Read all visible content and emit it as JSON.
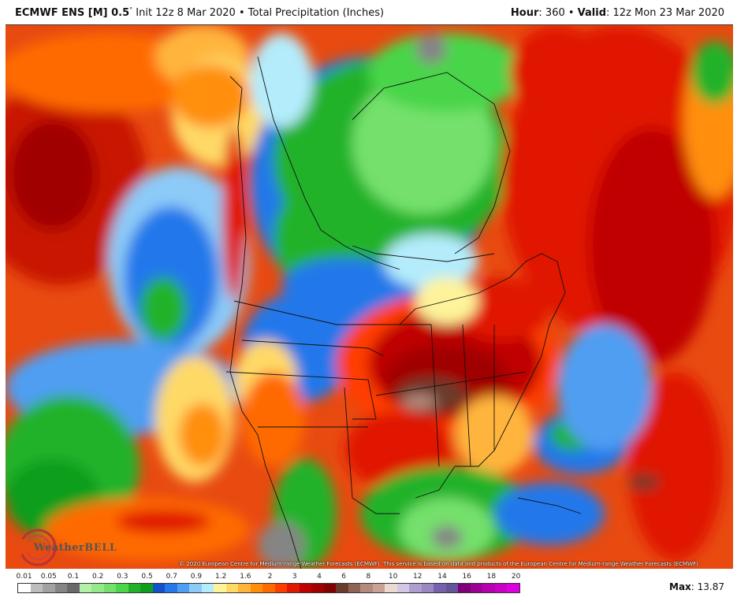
{
  "header": {
    "model": "ECMWF ENS [M] 0.5",
    "degree": "°",
    "init": " Init 12z 8 Mar 2020",
    "sep": " • ",
    "product": "Total Precipitation (Inches)",
    "hour_label": "Hour",
    "hour_value": ": 360",
    "valid_label": "Valid",
    "valid_value": ": 12z Mon 23 Mar 2020"
  },
  "map": {
    "region": "North America",
    "copyright": "© 2020 European Centre for Medium-range Weather Forecasts (ECMWF). This service is based on data and products of the European Centre for Medium-range Weather Forecasts (ECMWF).",
    "logo_text": "WeatherBELL",
    "max_label": "Max",
    "max_value": ": 13.87"
  },
  "legend": {
    "labels": [
      "0.01",
      "0.05",
      "0.1",
      "0.2",
      "0.3",
      "0.5",
      "0.7",
      "0.9",
      "1.2",
      "1.6",
      "2",
      "3",
      "4",
      "6",
      "8",
      "10",
      "12",
      "14",
      "16",
      "18",
      "20"
    ],
    "colors": [
      "#ffffff",
      "#bdbdbd",
      "#a2a2a2",
      "#858585",
      "#6a6a6a",
      "#b2f2a6",
      "#94e98a",
      "#74e16c",
      "#4ad54a",
      "#22b22a",
      "#0e9e1e",
      "#1450c8",
      "#2478ea",
      "#4f9ef2",
      "#8ccaf8",
      "#b4ecfc",
      "#fef39a",
      "#ffd966",
      "#ffb53c",
      "#ff8f0a",
      "#ff6a00",
      "#ff3c00",
      "#e01800",
      "#c00000",
      "#a10000",
      "#830000",
      "#6a3b2c",
      "#8d6456",
      "#b38a7c",
      "#c9a295",
      "#ecd9d0",
      "#d2c8e4",
      "#ae9ed0",
      "#9a88c0",
      "#7860ac",
      "#645498",
      "#7e0078",
      "#9a0094",
      "#b600b0",
      "#c800c4",
      "#dc00dc"
    ]
  }
}
